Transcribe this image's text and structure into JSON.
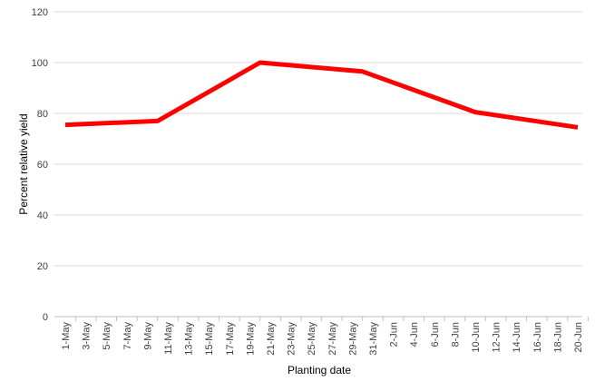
{
  "chart_data": {
    "type": "line",
    "x_label": "Planting date",
    "y_label": "Percent relative yield",
    "x": [
      "1-May",
      "10-May",
      "20-May",
      "30-May",
      "10-Jun",
      "20-Jun"
    ],
    "series": [
      {
        "name": "Relative yield",
        "color": "#ff0000",
        "values": [
          75.5,
          77,
          100,
          96.5,
          80.5,
          74.5
        ]
      }
    ],
    "xlim": [
      "1-May",
      "20-Jun"
    ],
    "xticks": [
      "1-May",
      "3-May",
      "5-May",
      "7-May",
      "9-May",
      "11-May",
      "13-May",
      "15-May",
      "17-May",
      "19-May",
      "21-May",
      "23-May",
      "25-May",
      "27-May",
      "29-May",
      "31-May",
      "2-Jun",
      "4-Jun",
      "6-Jun",
      "8-Jun",
      "10-Jun",
      "12-Jun",
      "14-Jun",
      "16-Jun",
      "18-Jun",
      "20-Jun"
    ],
    "ylim": [
      0,
      120
    ],
    "yticks": [
      0,
      20,
      40,
      60,
      80,
      100,
      120
    ],
    "grid": true
  }
}
